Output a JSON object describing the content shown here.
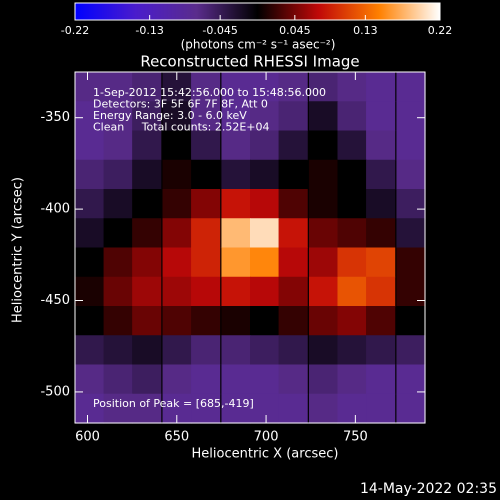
{
  "chart_data": {
    "type": "heatmap",
    "title": "Reconstructed RHESSI Image",
    "xlabel": "Heliocentric X (arcsec)",
    "ylabel": "Heliocentric Y (arcsec)",
    "colorbar_label": "(photons cm⁻² s⁻¹ asec⁻²)",
    "colorbar_ticks": [
      -0.22,
      -0.13,
      -0.045,
      0.045,
      0.13,
      0.22
    ],
    "zlim": [
      -0.22,
      0.22
    ],
    "colormap": [
      "#0000ff",
      "#4a1ccc",
      "#5a2c8c",
      "#000000",
      "#c00808",
      "#ff8000",
      "#ffffff"
    ],
    "annotations": [
      "1-Sep-2012 15:42:56.000 to 15:48:56.000",
      "Detectors: 3F 5F 6F 7F 8F, Att 0",
      "Energy Range: 3.0 - 6.0 keV",
      "Clean     Total counts: 2.52E+04"
    ],
    "peak_label": "Position of Peak = [685,-419]",
    "footer": "14-May-2022 02:35",
    "xlim": [
      593,
      789
    ],
    "ylim": [
      -517,
      -325
    ],
    "xticks": [
      600,
      650,
      700,
      750
    ],
    "yticks": [
      -350,
      -400,
      -450,
      -500
    ],
    "x": [
      601,
      617,
      633,
      650,
      666,
      683,
      699,
      715,
      732,
      748,
      764,
      781
    ],
    "y": [
      -333,
      -349,
      -365,
      -381,
      -397,
      -413,
      -429,
      -445,
      -461,
      -477,
      -493,
      -509
    ],
    "z": [
      [
        -0.07,
        -0.07,
        -0.06,
        -0.03,
        -0.07,
        -0.08,
        -0.08,
        -0.07,
        -0.06,
        -0.07,
        -0.08,
        -0.08
      ],
      [
        -0.08,
        -0.07,
        -0.05,
        -0.02,
        -0.07,
        -0.08,
        -0.07,
        -0.06,
        -0.02,
        -0.06,
        -0.08,
        -0.08
      ],
      [
        -0.08,
        -0.07,
        -0.04,
        0.0,
        -0.04,
        -0.07,
        -0.06,
        -0.03,
        0.0,
        -0.03,
        -0.07,
        -0.08
      ],
      [
        -0.06,
        -0.05,
        -0.02,
        0.01,
        0.0,
        -0.03,
        -0.02,
        0.0,
        0.01,
        0.0,
        -0.04,
        -0.07
      ],
      [
        -0.04,
        -0.02,
        0.0,
        0.02,
        0.05,
        0.08,
        0.07,
        0.03,
        0.01,
        0.0,
        -0.02,
        -0.05
      ],
      [
        -0.02,
        0.0,
        0.02,
        0.05,
        0.09,
        0.18,
        0.2,
        0.08,
        0.04,
        0.03,
        0.02,
        -0.03
      ],
      [
        0.0,
        0.03,
        0.05,
        0.07,
        0.09,
        0.16,
        0.15,
        0.07,
        0.06,
        0.1,
        0.11,
        0.02
      ],
      [
        0.01,
        0.04,
        0.06,
        0.06,
        0.07,
        0.08,
        0.07,
        0.05,
        0.08,
        0.12,
        0.1,
        0.02
      ],
      [
        0.0,
        0.02,
        0.04,
        0.03,
        0.02,
        0.01,
        0.0,
        0.02,
        0.04,
        0.05,
        0.03,
        0.0
      ],
      [
        -0.04,
        -0.03,
        -0.02,
        -0.04,
        -0.06,
        -0.06,
        -0.05,
        -0.04,
        -0.02,
        -0.03,
        -0.04,
        -0.05
      ],
      [
        -0.07,
        -0.06,
        -0.05,
        -0.07,
        -0.08,
        -0.08,
        -0.08,
        -0.07,
        -0.06,
        -0.07,
        -0.08,
        -0.08
      ],
      [
        -0.08,
        -0.07,
        -0.07,
        -0.08,
        -0.08,
        -0.08,
        -0.08,
        -0.08,
        -0.07,
        -0.08,
        -0.08,
        -0.08
      ]
    ]
  }
}
